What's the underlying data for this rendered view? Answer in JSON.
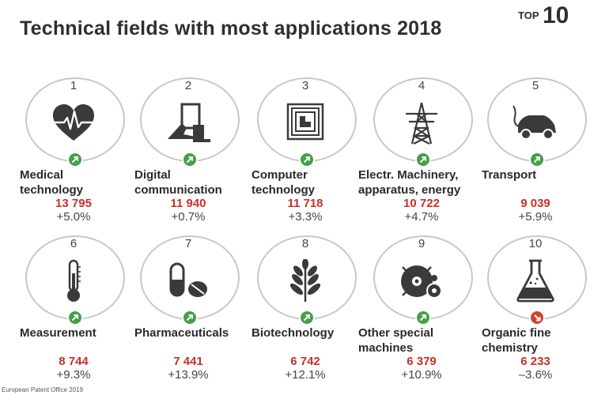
{
  "header": {
    "title": "Technical fields with most applications 2018",
    "badge_top": "TOP",
    "badge_num": "10"
  },
  "footer": "European Patent Office 2019",
  "colors": {
    "up": "#43a047",
    "down": "#d7402b",
    "value": "#c8302a",
    "ring": "#c8c8c8",
    "icon": "#3a3a3a"
  },
  "chart_data": {
    "type": "table",
    "title": "Technical fields with most applications 2018",
    "columns": [
      "rank",
      "field",
      "applications",
      "change"
    ],
    "rows": [
      {
        "rank": "1",
        "field": [
          "Medical",
          "technology"
        ],
        "applications": "13 795",
        "change": "+5.0%",
        "direction": "up",
        "icon": "heart-pulse-icon"
      },
      {
        "rank": "2",
        "field": [
          "Digital",
          "communication"
        ],
        "applications": "11 940",
        "change": "+0.7%",
        "direction": "up",
        "icon": "tablet-hand-icon"
      },
      {
        "rank": "3",
        "field": [
          "Computer",
          "technology"
        ],
        "applications": "11 718",
        "change": "+3.3%",
        "direction": "up",
        "icon": "chip-icon"
      },
      {
        "rank": "4",
        "field": [
          "Electr. Machinery,",
          "apparatus, energy"
        ],
        "applications": "10 722",
        "change": "+4.7%",
        "direction": "up",
        "icon": "power-pylon-icon"
      },
      {
        "rank": "5",
        "field": [
          "Transport",
          ""
        ],
        "applications": "9 039",
        "change": "+5.9%",
        "direction": "up",
        "icon": "electric-car-icon"
      },
      {
        "rank": "6",
        "field": [
          "Measurement",
          ""
        ],
        "applications": "8 744",
        "change": "+9.3%",
        "direction": "up",
        "icon": "thermometer-icon"
      },
      {
        "rank": "7",
        "field": [
          "Pharmaceuticals",
          ""
        ],
        "applications": "7 441",
        "change": "+13.9%",
        "direction": "up",
        "icon": "pills-icon"
      },
      {
        "rank": "8",
        "field": [
          "Biotechnology",
          ""
        ],
        "applications": "6 742",
        "change": "+12.1%",
        "direction": "up",
        "icon": "plant-icon"
      },
      {
        "rank": "9",
        "field": [
          "Other special",
          "machines"
        ],
        "applications": "6 379",
        "change": "+10.9%",
        "direction": "up",
        "icon": "saw-blade-icon"
      },
      {
        "rank": "10",
        "field": [
          "Organic fine",
          "chemistry"
        ],
        "applications": "6 233",
        "change": "–3.6%",
        "direction": "down",
        "icon": "flask-icon"
      }
    ]
  }
}
